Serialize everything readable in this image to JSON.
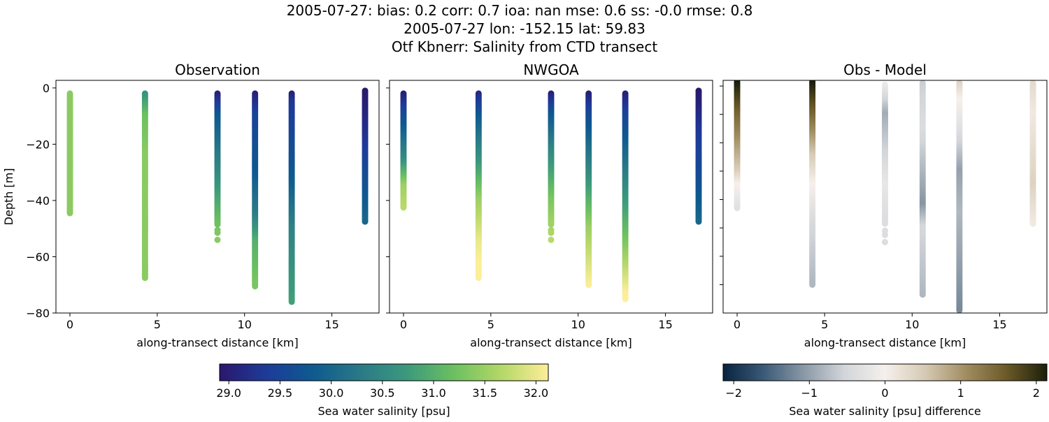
{
  "title_lines": [
    "2005-07-27: bias: 0.2  corr: 0.7  ioa: nan  mse: 0.6  ss: -0.0  rmse: 0.8",
    "2005-07-27 lon: -152.15 lat: 59.83",
    "Otf Kbnerr: Salinity from CTD transect"
  ],
  "chart_data": [
    {
      "type": "scatter",
      "title": "Observation",
      "xlabel": "along-transect distance [km]",
      "ylabel": "Depth [m]",
      "xlim": [
        -0.8,
        17.7
      ],
      "ylim": [
        -80,
        2.7
      ],
      "xticks": [
        0,
        5,
        10,
        15
      ],
      "yticks": [
        0,
        -20,
        -40,
        -60,
        -80
      ],
      "colormap": "haline",
      "clim": [
        28.91,
        32.12
      ],
      "profiles": [
        {
          "x": 0,
          "depth_range": [
            -2,
            -44.5
          ],
          "salinity_stops": [
            [
              -2,
              31.4
            ],
            [
              -44.5,
              31.4
            ]
          ]
        },
        {
          "x": 4.3,
          "depth_range": [
            -2,
            -67.5
          ],
          "salinity_stops": [
            [
              -2,
              30.6
            ],
            [
              -10,
              31.2
            ],
            [
              -25,
              31.4
            ],
            [
              -67.5,
              31.4
            ]
          ]
        },
        {
          "x": 8.45,
          "depth_range": [
            -2,
            -48.5
          ],
          "extra_depths": [
            -50.5,
            -51.5,
            -54
          ],
          "salinity_stops": [
            [
              -2,
              29.0
            ],
            [
              -10,
              29.8
            ],
            [
              -30,
              30.5
            ],
            [
              -48,
              31.2
            ],
            [
              -54,
              31.4
            ]
          ]
        },
        {
          "x": 10.6,
          "depth_range": [
            -2,
            -70.5
          ],
          "salinity_stops": [
            [
              -2,
              29.0
            ],
            [
              -10,
              29.5
            ],
            [
              -30,
              29.8
            ],
            [
              -45,
              30.3
            ],
            [
              -55,
              31.0
            ],
            [
              -70.5,
              31.3
            ]
          ]
        },
        {
          "x": 12.7,
          "depth_range": [
            -2,
            -76
          ],
          "salinity_stops": [
            [
              -2,
              29.0
            ],
            [
              -5,
              29.3
            ],
            [
              -20,
              29.6
            ],
            [
              -35,
              29.9
            ],
            [
              -50,
              30.4
            ],
            [
              -76,
              30.8
            ]
          ]
        },
        {
          "x": 16.9,
          "depth_range": [
            -1,
            -47.5
          ],
          "salinity_stops": [
            [
              -1,
              28.9
            ],
            [
              -15,
              29.2
            ],
            [
              -30,
              29.6
            ],
            [
              -47.5,
              30.0
            ]
          ]
        }
      ]
    },
    {
      "type": "scatter",
      "title": "NWGOA",
      "xlabel": "along-transect distance [km]",
      "xlim": [
        -0.8,
        17.7
      ],
      "ylim": [
        -80,
        2.7
      ],
      "xticks": [
        0,
        5,
        10,
        15
      ],
      "yticks": [
        0,
        -20,
        -40,
        -60,
        -80
      ],
      "colormap": "haline",
      "clim": [
        28.91,
        32.12
      ],
      "profiles": [
        {
          "x": 0,
          "depth_range": [
            -2,
            -42.5
          ],
          "salinity_stops": [
            [
              -2,
              29.0
            ],
            [
              -10,
              29.6
            ],
            [
              -25,
              30.5
            ],
            [
              -35,
              31.5
            ],
            [
              -42.5,
              31.7
            ]
          ]
        },
        {
          "x": 4.3,
          "depth_range": [
            -2,
            -67.5
          ],
          "salinity_stops": [
            [
              -2,
              29.1
            ],
            [
              -10,
              29.8
            ],
            [
              -25,
              30.6
            ],
            [
              -40,
              31.5
            ],
            [
              -55,
              32.0
            ],
            [
              -67.5,
              32.2
            ]
          ]
        },
        {
          "x": 8.45,
          "depth_range": [
            -2,
            -48.5
          ],
          "extra_depths": [
            -50.5,
            -51.5,
            -54
          ],
          "salinity_stops": [
            [
              -2,
              29.0
            ],
            [
              -10,
              29.8
            ],
            [
              -25,
              30.6
            ],
            [
              -40,
              31.3
            ],
            [
              -54,
              31.7
            ]
          ]
        },
        {
          "x": 10.6,
          "depth_range": [
            -2,
            -70
          ],
          "salinity_stops": [
            [
              -2,
              29.0
            ],
            [
              -10,
              29.6
            ],
            [
              -30,
              30.5
            ],
            [
              -50,
              31.5
            ],
            [
              -70,
              32.1
            ]
          ]
        },
        {
          "x": 12.7,
          "depth_range": [
            -2,
            -75
          ],
          "salinity_stops": [
            [
              -2,
              29.0
            ],
            [
              -10,
              29.5
            ],
            [
              -30,
              30.3
            ],
            [
              -55,
              31.3
            ],
            [
              -75,
              32.2
            ]
          ]
        },
        {
          "x": 16.9,
          "depth_range": [
            -1,
            -47.5
          ],
          "salinity_stops": [
            [
              -1,
              28.9
            ],
            [
              -15,
              29.3
            ],
            [
              -35,
              29.7
            ],
            [
              -47.5,
              30.0
            ]
          ]
        }
      ]
    },
    {
      "type": "scatter",
      "title": "Obs - Model",
      "xlabel": "along-transect distance [km]",
      "xlim": [
        -0.8,
        17.7
      ],
      "ylim": [
        -80,
        2
      ],
      "xticks": [
        0,
        5,
        10,
        15
      ],
      "yticks": [
        0,
        -10,
        -20,
        -30,
        -40,
        -50,
        -60,
        -70
      ],
      "colormap": "diff",
      "clim": [
        -2.14,
        2.14
      ],
      "profiles": [
        {
          "x": 0,
          "depth_range": [
            1.5,
            -43
          ],
          "salinity_stops": [
            [
              1.5,
              2.2
            ],
            [
              -10,
              1.5
            ],
            [
              -20,
              1.0
            ],
            [
              -30,
              0.5
            ],
            [
              -35,
              0
            ],
            [
              -43,
              -0.3
            ]
          ]
        },
        {
          "x": 4.3,
          "depth_range": [
            1.5,
            -70
          ],
          "salinity_stops": [
            [
              1.5,
              2.2
            ],
            [
              -10,
              1.5
            ],
            [
              -25,
              0.5
            ],
            [
              -35,
              0
            ],
            [
              -50,
              -0.5
            ],
            [
              -70,
              -0.8
            ]
          ]
        },
        {
          "x": 8.45,
          "depth_range": [
            0.5,
            -48.5
          ],
          "extra_depths": [
            -51,
            -52.5,
            -55
          ],
          "salinity_stops": [
            [
              0.5,
              -0.1
            ],
            [
              -10,
              -0.9
            ],
            [
              -25,
              -0.5
            ],
            [
              -35,
              -0.2
            ],
            [
              -48,
              -0.4
            ],
            [
              -55,
              -0.4
            ]
          ]
        },
        {
          "x": 10.6,
          "depth_range": [
            1,
            -73.5
          ],
          "salinity_stops": [
            [
              1,
              -0.6
            ],
            [
              -15,
              -0.4
            ],
            [
              -30,
              -0.8
            ],
            [
              -42,
              -1.1
            ],
            [
              -50,
              -0.5
            ],
            [
              -73.5,
              -0.8
            ]
          ]
        },
        {
          "x": 12.7,
          "depth_range": [
            1,
            -79
          ],
          "salinity_stops": [
            [
              1,
              0.4
            ],
            [
              -5,
              0
            ],
            [
              -15,
              -0.3
            ],
            [
              -30,
              -1.0
            ],
            [
              -45,
              -0.8
            ],
            [
              -79,
              -1.2
            ]
          ]
        },
        {
          "x": 16.9,
          "depth_range": [
            1,
            -48.5
          ],
          "salinity_stops": [
            [
              1,
              0.3
            ],
            [
              -10,
              0.1
            ],
            [
              -35,
              0.4
            ],
            [
              -48.5,
              0.1
            ]
          ]
        }
      ]
    }
  ],
  "colorbars": [
    {
      "label": "Sea water salinity [psu]",
      "colormap": "haline",
      "clim": [
        28.91,
        32.12
      ],
      "ticks": [
        "29.0",
        "29.5",
        "30.0",
        "30.5",
        "31.0",
        "31.5",
        "32.0"
      ]
    },
    {
      "label": "Sea water salinity [psu] difference",
      "colormap": "diff",
      "clim": [
        -2.14,
        2.14
      ],
      "ticks": [
        "−2",
        "−1",
        "0",
        "1",
        "2"
      ]
    }
  ],
  "colormaps": {
    "haline": [
      "#2a186c",
      "#1d3b9a",
      "#0e5a8f",
      "#2a7a87",
      "#3c9a7c",
      "#6cc060",
      "#b4d767",
      "#fdee99"
    ],
    "diff": [
      "#08233f",
      "#3a5a78",
      "#8b99a6",
      "#d3d6da",
      "#f5f0ec",
      "#d6c9b3",
      "#a08d60",
      "#6b5a28",
      "#1c1f0a"
    ]
  }
}
